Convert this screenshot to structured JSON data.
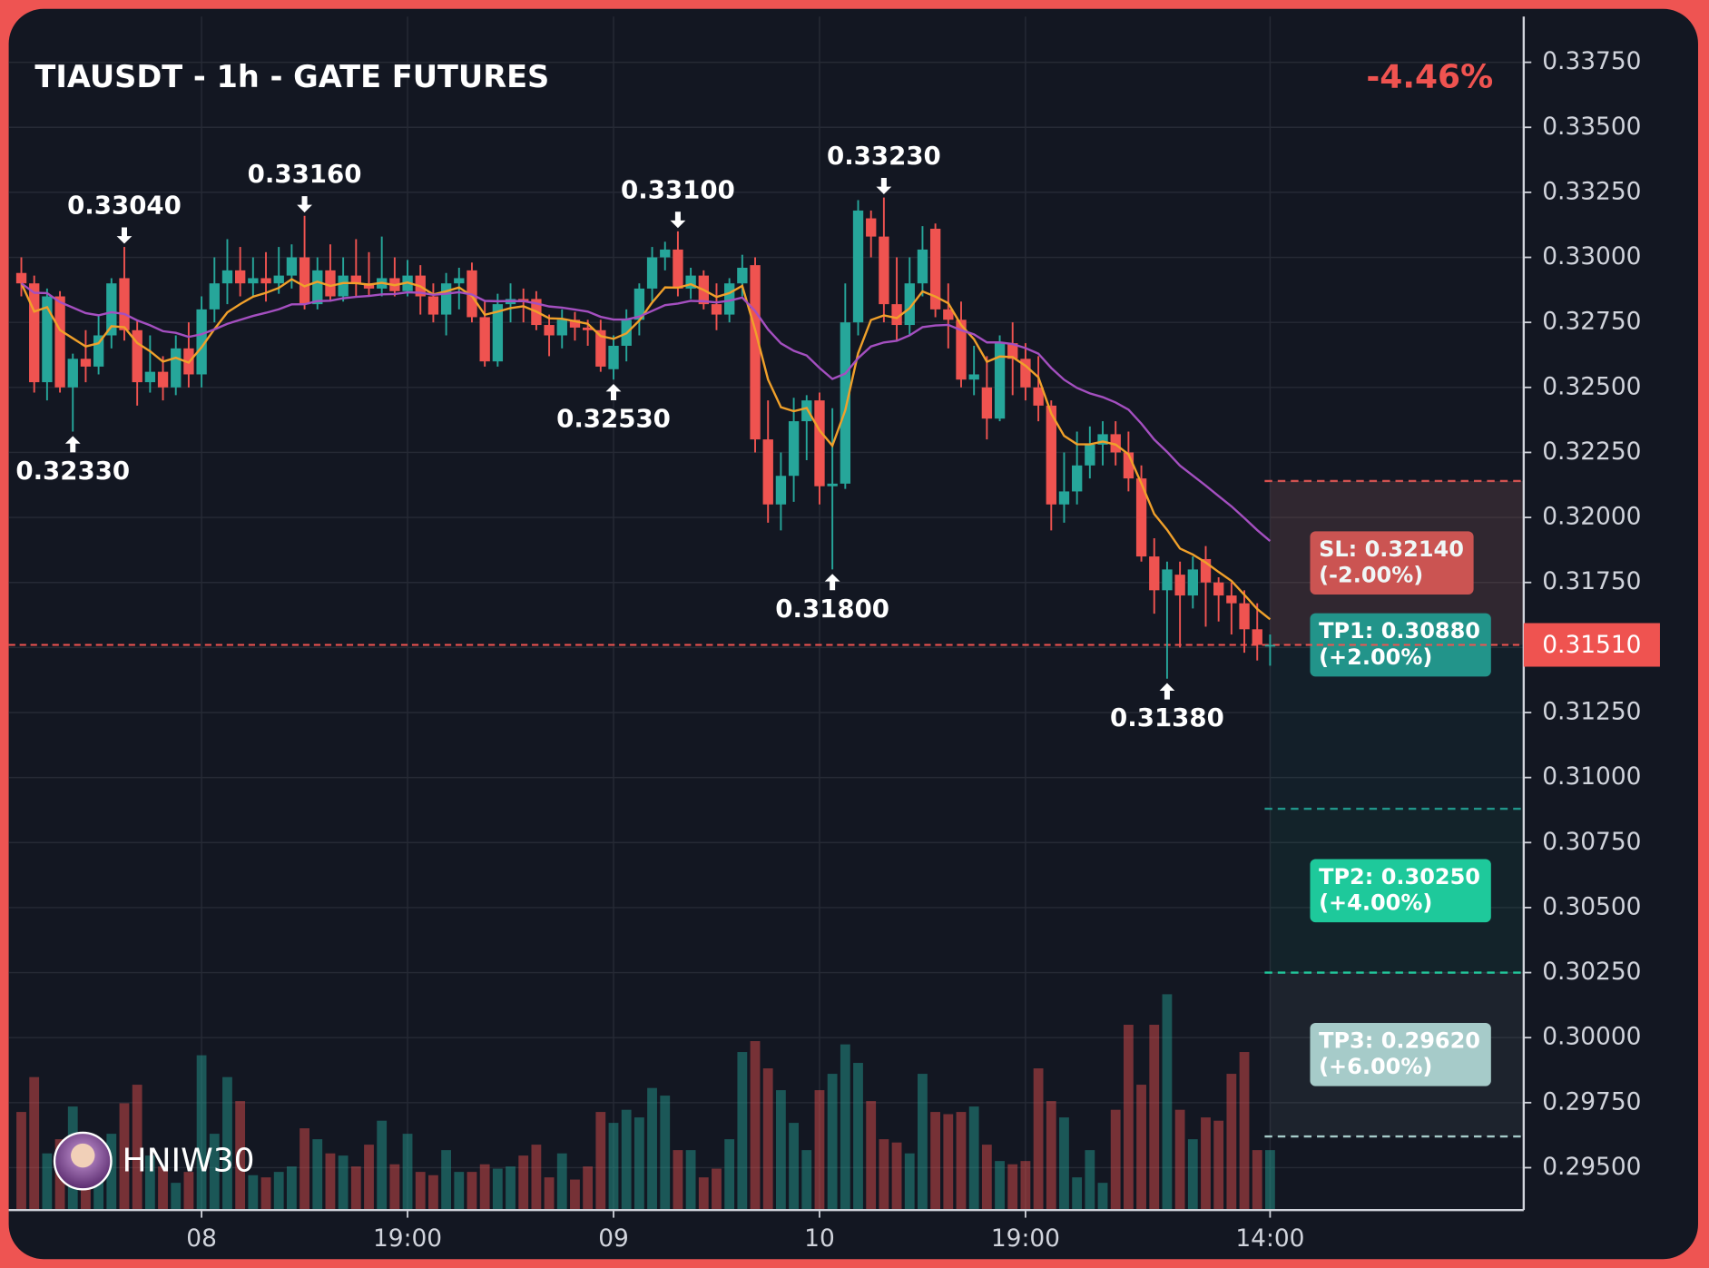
{
  "chart_data": {
    "type": "candlestick",
    "title": "TIAUSDT - 1h - GATE FUTURES",
    "change": "-4.46%",
    "watermark": "HNIW30",
    "up_color": "#26a69a",
    "down_color": "#ef5350",
    "grid": true,
    "xlim": [
      -0.98,
      116.7
    ],
    "ylim": [
      0.29337,
      0.33926
    ],
    "xticks": [
      {
        "value": 14,
        "label": "08"
      },
      {
        "value": 30,
        "label": "19:00"
      },
      {
        "value": 46,
        "label": "09"
      },
      {
        "value": 62,
        "label": "10"
      },
      {
        "value": 78,
        "label": "19:00"
      },
      {
        "value": 97,
        "label": "14:00"
      }
    ],
    "yticks": [
      {
        "value": 0.295,
        "label": "0.29500"
      },
      {
        "value": 0.2975,
        "label": "0.29750"
      },
      {
        "value": 0.3,
        "label": "0.30000"
      },
      {
        "value": 0.3025,
        "label": "0.30250"
      },
      {
        "value": 0.305,
        "label": "0.30500"
      },
      {
        "value": 0.3075,
        "label": "0.30750"
      },
      {
        "value": 0.31,
        "label": "0.31000"
      },
      {
        "value": 0.3125,
        "label": "0.31250"
      },
      {
        "value": 0.315,
        "label": "0.31500"
      },
      {
        "value": 0.3175,
        "label": "0.31750"
      },
      {
        "value": 0.32,
        "label": "0.32000"
      },
      {
        "value": 0.3225,
        "label": "0.32250"
      },
      {
        "value": 0.325,
        "label": "0.32500"
      },
      {
        "value": 0.3275,
        "label": "0.32750"
      },
      {
        "value": 0.33,
        "label": "0.33000"
      },
      {
        "value": 0.3325,
        "label": "0.33250"
      },
      {
        "value": 0.335,
        "label": "0.33500"
      },
      {
        "value": 0.3375,
        "label": "0.33750"
      }
    ],
    "candles": {
      "open": [
        0.3294,
        0.329,
        0.3252,
        0.3285,
        0.325,
        0.3261,
        0.3258,
        0.327,
        0.3292,
        0.3272,
        0.3252,
        0.3256,
        0.325,
        0.3265,
        0.3255,
        0.328,
        0.329,
        0.3295,
        0.329,
        0.3292,
        0.329,
        0.3293,
        0.33,
        0.3282,
        0.3295,
        0.3285,
        0.3293,
        0.329,
        0.3288,
        0.3292,
        0.3287,
        0.3293,
        0.3285,
        0.3278,
        0.329,
        0.3295,
        0.3277,
        0.326,
        0.3282,
        0.3284,
        0.3284,
        0.3274,
        0.327,
        0.3276,
        0.3273,
        0.3272,
        0.3257,
        0.3266,
        0.3276,
        0.3288,
        0.33,
        0.3303,
        0.3288,
        0.3293,
        0.3282,
        0.3278,
        0.329,
        0.3297,
        0.323,
        0.3205,
        0.3216,
        0.3237,
        0.3245,
        0.3212,
        0.3213,
        0.3275,
        0.3315,
        0.3308,
        0.3282,
        0.3274,
        0.329,
        0.3311,
        0.328,
        0.3276,
        0.3253,
        0.325,
        0.3238,
        0.3267,
        0.3261,
        0.325,
        0.3243,
        0.3205,
        0.321,
        0.322,
        0.3228,
        0.3232,
        0.3225,
        0.3215,
        0.3185,
        0.3172,
        0.3178,
        0.317,
        0.3184,
        0.3175,
        0.317,
        0.3167,
        0.3157,
        0.3151
      ],
      "high": [
        0.33,
        0.3293,
        0.3288,
        0.3287,
        0.3263,
        0.3272,
        0.3278,
        0.3292,
        0.3304,
        0.3276,
        0.327,
        0.3262,
        0.327,
        0.3275,
        0.3285,
        0.33,
        0.3307,
        0.3304,
        0.33,
        0.3302,
        0.3304,
        0.3305,
        0.3316,
        0.33,
        0.3305,
        0.33,
        0.3307,
        0.3302,
        0.3308,
        0.33,
        0.3299,
        0.3297,
        0.329,
        0.3294,
        0.3296,
        0.3298,
        0.3283,
        0.3286,
        0.329,
        0.3288,
        0.3287,
        0.3278,
        0.328,
        0.3279,
        0.3276,
        0.3276,
        0.327,
        0.328,
        0.329,
        0.3304,
        0.3306,
        0.331,
        0.3296,
        0.3295,
        0.329,
        0.3292,
        0.3301,
        0.33,
        0.3245,
        0.3225,
        0.3246,
        0.3247,
        0.3248,
        0.3242,
        0.329,
        0.3322,
        0.3318,
        0.3323,
        0.33,
        0.33,
        0.3312,
        0.3313,
        0.329,
        0.3283,
        0.3266,
        0.3262,
        0.327,
        0.3275,
        0.3267,
        0.3262,
        0.3245,
        0.3225,
        0.3233,
        0.3235,
        0.3237,
        0.3237,
        0.3233,
        0.322,
        0.3192,
        0.3183,
        0.3183,
        0.3185,
        0.3189,
        0.3177,
        0.3175,
        0.3172,
        0.3167,
        0.3155
      ],
      "low": [
        0.3285,
        0.3248,
        0.3245,
        0.3248,
        0.3233,
        0.3252,
        0.3255,
        0.3265,
        0.3268,
        0.3243,
        0.3248,
        0.3245,
        0.3247,
        0.325,
        0.325,
        0.3275,
        0.3282,
        0.3285,
        0.3285,
        0.3283,
        0.3286,
        0.3288,
        0.328,
        0.328,
        0.3283,
        0.3283,
        0.3285,
        0.3285,
        0.3285,
        0.3285,
        0.3285,
        0.3278,
        0.3275,
        0.327,
        0.328,
        0.3275,
        0.3258,
        0.3258,
        0.3275,
        0.3275,
        0.3272,
        0.3262,
        0.3265,
        0.3268,
        0.3266,
        0.3256,
        0.3253,
        0.326,
        0.327,
        0.3283,
        0.3295,
        0.3285,
        0.3284,
        0.328,
        0.3272,
        0.3275,
        0.3285,
        0.3225,
        0.3198,
        0.3195,
        0.3206,
        0.3222,
        0.3205,
        0.318,
        0.3211,
        0.327,
        0.33,
        0.3275,
        0.3268,
        0.327,
        0.3285,
        0.3277,
        0.3265,
        0.325,
        0.3247,
        0.323,
        0.3237,
        0.3247,
        0.3245,
        0.3237,
        0.3195,
        0.3198,
        0.3205,
        0.3215,
        0.322,
        0.322,
        0.321,
        0.3183,
        0.3163,
        0.3138,
        0.315,
        0.3165,
        0.3158,
        0.316,
        0.3155,
        0.3148,
        0.3145,
        0.3143
      ],
      "close": [
        0.329,
        0.3252,
        0.3285,
        0.325,
        0.3261,
        0.3258,
        0.327,
        0.329,
        0.3272,
        0.3252,
        0.3256,
        0.325,
        0.3265,
        0.3255,
        0.328,
        0.329,
        0.3295,
        0.329,
        0.3292,
        0.329,
        0.3293,
        0.33,
        0.3282,
        0.3295,
        0.3285,
        0.3293,
        0.329,
        0.3288,
        0.3292,
        0.3287,
        0.3293,
        0.3285,
        0.3278,
        0.329,
        0.3292,
        0.3277,
        0.326,
        0.3282,
        0.3284,
        0.3283,
        0.3274,
        0.327,
        0.3276,
        0.3273,
        0.3272,
        0.3258,
        0.3266,
        0.3276,
        0.3288,
        0.33,
        0.3303,
        0.3288,
        0.3293,
        0.3282,
        0.3278,
        0.329,
        0.3296,
        0.323,
        0.3205,
        0.3216,
        0.3237,
        0.3245,
        0.3212,
        0.3213,
        0.3275,
        0.3318,
        0.3308,
        0.3282,
        0.3274,
        0.329,
        0.3303,
        0.328,
        0.3276,
        0.3253,
        0.3255,
        0.3238,
        0.3267,
        0.3261,
        0.325,
        0.3243,
        0.3205,
        0.321,
        0.322,
        0.3228,
        0.3232,
        0.3225,
        0.3215,
        0.3185,
        0.3172,
        0.318,
        0.317,
        0.318,
        0.3175,
        0.317,
        0.3167,
        0.3157,
        0.3151,
        0.3151
      ],
      "volume": [
        90,
        122,
        52,
        65,
        95,
        45,
        32,
        70,
        98,
        115,
        50,
        40,
        25,
        35,
        142,
        70,
        122,
        100,
        32,
        30,
        35,
        40,
        75,
        65,
        52,
        50,
        40,
        60,
        82,
        42,
        70,
        35,
        32,
        55,
        35,
        35,
        42,
        38,
        40,
        50,
        60,
        30,
        52,
        28,
        40,
        90,
        80,
        92,
        85,
        112,
        105,
        55,
        55,
        30,
        38,
        65,
        145,
        155,
        130,
        110,
        80,
        55,
        110,
        125,
        152,
        135,
        100,
        65,
        62,
        52,
        125,
        90,
        88,
        90,
        95,
        60,
        45,
        42,
        45,
        130,
        100,
        85,
        30,
        55,
        25,
        92,
        170,
        115,
        170,
        198,
        92,
        65,
        85,
        82,
        125,
        145,
        55,
        55
      ]
    },
    "annotations": [
      {
        "index": 4,
        "value": 0.3233,
        "label": "0.32330",
        "position": "below"
      },
      {
        "index": 8,
        "value": 0.3304,
        "label": "0.33040",
        "position": "above"
      },
      {
        "index": 22,
        "value": 0.3316,
        "label": "0.33160",
        "position": "above"
      },
      {
        "index": 46,
        "value": 0.3253,
        "label": "0.32530",
        "position": "below"
      },
      {
        "index": 51,
        "value": 0.331,
        "label": "0.33100",
        "position": "above"
      },
      {
        "index": 63,
        "value": 0.318,
        "label": "0.31800",
        "position": "below"
      },
      {
        "index": 67,
        "value": 0.3323,
        "label": "0.33230",
        "position": "above"
      },
      {
        "index": 89,
        "value": 0.3138,
        "label": "0.31380",
        "position": "below"
      }
    ],
    "last_price": {
      "value": 0.3151,
      "label": "0.31510",
      "color": "#ef5350"
    },
    "levels": [
      {
        "label": "SL: 0.32140",
        "pct": "(-2.00%)",
        "value": 0.3214,
        "color": "#d9504e"
      },
      {
        "label": "TP1: 0.30880",
        "pct": "(+2.00%)",
        "value": 0.3088,
        "color": "#22948a"
      },
      {
        "label": "TP2: 0.30250",
        "pct": "(+4.00%)",
        "value": 0.3025,
        "color": "#1ec99b"
      },
      {
        "label": "TP3: 0.29620",
        "pct": "(+6.00%)",
        "value": 0.2962,
        "color": "#a6cbc9"
      }
    ]
  }
}
